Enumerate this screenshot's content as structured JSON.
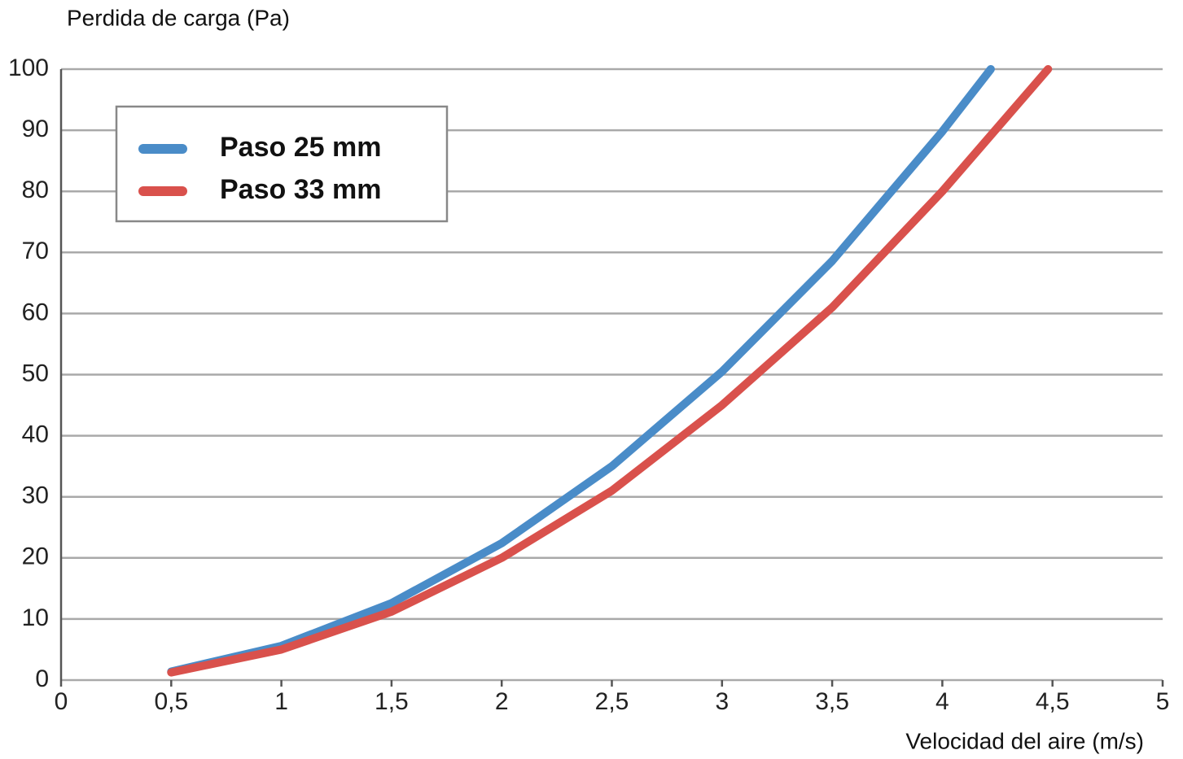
{
  "chart_data": {
    "type": "line",
    "y_axis_label": "Perdida de carga (Pa)",
    "x_axis_label": "Velocidad del aire (m/s)",
    "xlim": [
      0,
      5
    ],
    "xticks": [
      0,
      {
        "value": 0.5,
        "label": "0,5"
      },
      1,
      {
        "value": 1.5,
        "label": "1,5"
      },
      2,
      {
        "value": 2.5,
        "label": "2,5"
      },
      3,
      {
        "value": 3.5,
        "label": "3,5"
      },
      4,
      {
        "value": 4.5,
        "label": "4,5"
      },
      5
    ],
    "ylim": [
      0,
      100
    ],
    "yticks": [
      0,
      10,
      20,
      30,
      40,
      50,
      60,
      70,
      80,
      90,
      100
    ],
    "grid": true,
    "legend": "upper-left",
    "series": [
      {
        "name": "Paso 25 mm",
        "color": "#4a8cc8",
        "x": [
          0.5,
          1,
          1.5,
          2,
          2.5,
          3,
          3.5,
          4,
          4.22
        ],
        "values": [
          1.4,
          5.6,
          12.6,
          22.4,
          35,
          50.5,
          68.6,
          89.8,
          100
        ]
      },
      {
        "name": "Paso 33 mm",
        "color": "#d9514c",
        "x": [
          0.5,
          1,
          1.5,
          2,
          2.5,
          3,
          3.5,
          4,
          4.48
        ],
        "values": [
          1.25,
          5,
          11.2,
          20,
          31,
          45,
          61,
          80,
          100
        ]
      }
    ]
  }
}
